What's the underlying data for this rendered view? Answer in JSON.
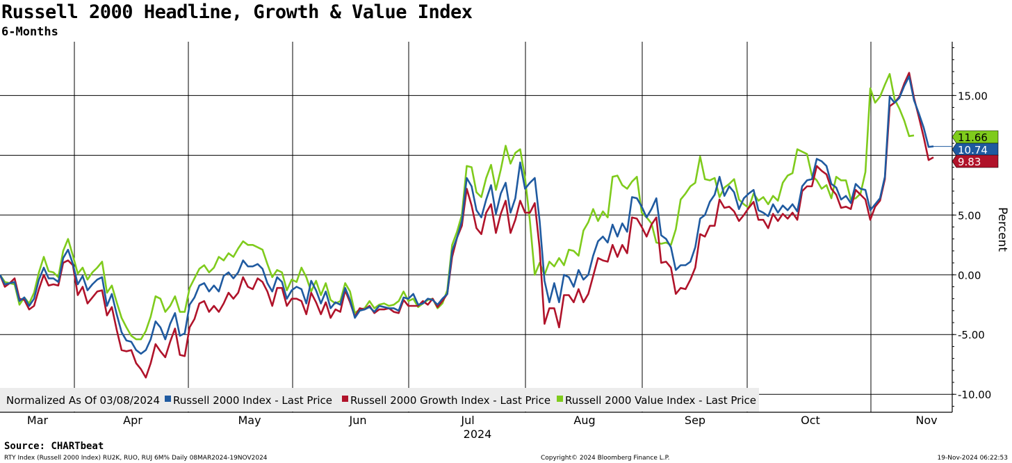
{
  "header": {
    "title": "Russell 2000 Headline, Growth & Value Index",
    "subtitle": "6-Months"
  },
  "footer": {
    "source": "Source: CHARTbeat",
    "tickers": "RTY Index (Russell 2000 Index) RU2K, RUO, RUJ 6M%  Daily 08MAR2024-19NOV2024",
    "copyright": "Copyright© 2024 Bloomberg Finance L.P.",
    "timestamp": "19-Nov-2024 06:22:53"
  },
  "chart_data": {
    "type": "line",
    "ylabel": "Percent",
    "xlabel": "",
    "ylim": [
      -11.5,
      19.5
    ],
    "yticks": [
      15,
      10,
      5,
      0,
      -5,
      -10
    ],
    "ytick_labels": [
      "15.00",
      "10.00",
      "5.00",
      "0.00",
      "-5.00",
      "-10.00"
    ],
    "month_labels": [
      "Mar",
      "Apr",
      "May",
      "Jun",
      "Jul",
      "Aug",
      "Sep",
      "Oct",
      "Nov"
    ],
    "year_label": "2024",
    "grid": true,
    "legend": {
      "placement": "bottom-left",
      "prefix": "Normalized As Of 03/08/2024",
      "items": [
        "Russell 2000 Index - Last Price",
        "Russell 2000 Growth Index - Last Price",
        "Russell 2000 Value Index - Last Price"
      ]
    },
    "last_value_labels": [
      "11.66",
      "10.74",
      "9.83"
    ],
    "colors": {
      "headline": "#1f5aa0",
      "growth": "#b0132a",
      "value": "#7fcb1c"
    },
    "series": [
      {
        "name": "Russell 2000 Index - Last Price",
        "key": "headline",
        "values": [
          0.0,
          -0.8,
          -0.7,
          -0.6,
          -2.2,
          -1.9,
          -2.6,
          -2.0,
          -0.4,
          0.6,
          -0.3,
          -0.3,
          -0.6,
          1.4,
          2.1,
          0.9,
          -0.8,
          -0.1,
          -1.3,
          -0.8,
          -0.4,
          -0.2,
          -2.6,
          -1.6,
          -3.3,
          -4.8,
          -5.5,
          -5.6,
          -6.3,
          -6.6,
          -6.3,
          -5.4,
          -3.9,
          -4.4,
          -5.4,
          -4.1,
          -3.2,
          -5.1,
          -4.9,
          -2.5,
          -1.9,
          -0.9,
          -0.7,
          -1.4,
          -0.9,
          -1.4,
          -0.1,
          0.2,
          -0.3,
          0.2,
          1.2,
          0.7,
          0.7,
          0.9,
          0.5,
          -0.7,
          -1.4,
          -0.2,
          -0.6,
          -2.0,
          -1.3,
          -1.0,
          -1.2,
          -2.4,
          -0.5,
          -1.3,
          -2.4,
          -1.4,
          -2.8,
          -2.3,
          -2.5,
          -1.1,
          -2.1,
          -3.6,
          -3.0,
          -2.9,
          -2.7,
          -3.1,
          -2.6,
          -2.7,
          -2.8,
          -2.8,
          -3.0,
          -1.9,
          -2.0,
          -1.6,
          -2.5,
          -2.4,
          -2.0,
          -2.1,
          -2.5,
          -2.0,
          -1.6,
          2.0,
          3.1,
          4.5,
          8.1,
          7.4,
          5.4,
          4.8,
          6.3,
          7.5,
          5.1,
          6.8,
          7.7,
          5.2,
          6.4,
          9.4,
          7.2,
          7.7,
          8.1,
          4.5,
          -0.5,
          -2.3,
          -0.7,
          -2.3,
          0.0,
          -0.2,
          -1.0,
          0.4,
          -0.4,
          0.0,
          1.6,
          2.8,
          3.2,
          2.7,
          4.2,
          3.2,
          4.3,
          3.6,
          6.5,
          6.4,
          5.7,
          4.8,
          5.5,
          6.4,
          3.3,
          3.0,
          2.3,
          0.4,
          0.8,
          0.8,
          1.1,
          2.3,
          4.7,
          5.0,
          6.1,
          6.7,
          8.2,
          6.6,
          7.4,
          6.9,
          5.5,
          6.4,
          6.8,
          7.1,
          5.4,
          5.2,
          4.9,
          5.9,
          5.2,
          5.8,
          5.4,
          5.9,
          5.3,
          7.4,
          7.9,
          8.0,
          9.7,
          9.5,
          9.1,
          7.6,
          7.3,
          6.3,
          6.6,
          6.0,
          7.6,
          7.2,
          7.1,
          5.4,
          5.9,
          6.4,
          8.2,
          14.9,
          14.4,
          14.8,
          15.8,
          16.6,
          14.6,
          13.5,
          12.3,
          10.7,
          10.74
        ]
      },
      {
        "name": "Russell 2000 Growth Index - Last Price",
        "key": "growth",
        "values": [
          0.0,
          -1.0,
          -0.7,
          -0.3,
          -2.0,
          -2.1,
          -2.9,
          -2.6,
          -1.2,
          0.0,
          -0.9,
          -0.8,
          -0.9,
          1.0,
          1.2,
          0.8,
          -1.7,
          -1.0,
          -2.4,
          -1.9,
          -1.4,
          -1.3,
          -3.4,
          -2.7,
          -4.6,
          -6.3,
          -6.4,
          -6.3,
          -7.4,
          -7.9,
          -8.6,
          -7.4,
          -5.8,
          -6.4,
          -6.9,
          -5.6,
          -4.5,
          -6.7,
          -6.8,
          -4.4,
          -3.7,
          -2.4,
          -2.2,
          -3.1,
          -2.6,
          -3.1,
          -2.4,
          -1.5,
          -2.0,
          -1.5,
          -0.2,
          -1.0,
          -1.2,
          -0.3,
          -0.6,
          -1.4,
          -2.6,
          -1.1,
          -1.1,
          -2.6,
          -2.0,
          -2.0,
          -2.2,
          -3.3,
          -1.5,
          -2.3,
          -3.3,
          -2.3,
          -3.6,
          -2.9,
          -3.1,
          -1.3,
          -2.3,
          -3.5,
          -2.8,
          -2.9,
          -2.6,
          -3.2,
          -2.9,
          -2.9,
          -2.8,
          -3.1,
          -3.2,
          -2.1,
          -2.6,
          -2.6,
          -2.6,
          -2.2,
          -2.5,
          -2.0,
          -2.7,
          -2.2,
          -1.6,
          1.5,
          3.1,
          4.1,
          7.2,
          5.8,
          3.9,
          3.4,
          5.2,
          5.9,
          3.5,
          5.1,
          6.2,
          3.5,
          4.6,
          6.2,
          5.2,
          5.2,
          6.0,
          2.2,
          -4.1,
          -2.8,
          -2.8,
          -4.4,
          -1.7,
          -1.7,
          -2.3,
          -1.2,
          -2.3,
          -1.6,
          -0.1,
          1.4,
          1.2,
          1.1,
          2.5,
          1.5,
          2.5,
          1.8,
          4.8,
          4.7,
          4.0,
          3.2,
          4.2,
          4.8,
          1.0,
          1.1,
          0.6,
          -1.6,
          -1.1,
          -1.2,
          -0.4,
          0.6,
          3.4,
          3.2,
          4.1,
          4.1,
          6.3,
          5.6,
          5.7,
          5.3,
          4.5,
          5.0,
          5.6,
          6.1,
          4.6,
          4.6,
          3.9,
          5.1,
          4.5,
          5.1,
          4.7,
          5.2,
          4.6,
          7.0,
          7.4,
          7.4,
          9.1,
          8.7,
          8.4,
          7.2,
          6.7,
          5.6,
          5.7,
          5.5,
          7.1,
          6.7,
          6.3,
          4.6,
          5.7,
          6.2,
          8.0,
          14.1,
          14.4,
          14.9,
          16.0,
          16.9,
          14.8,
          13.2,
          11.5,
          9.6,
          9.83
        ]
      },
      {
        "name": "Russell 2000 Value Index - Last Price",
        "key": "value",
        "values": [
          0.0,
          -0.6,
          -0.7,
          -0.8,
          -2.5,
          -1.9,
          -2.4,
          -1.5,
          0.2,
          1.5,
          0.3,
          0.2,
          -0.2,
          2.0,
          3.0,
          1.6,
          0.1,
          0.6,
          -0.4,
          0.2,
          0.6,
          1.1,
          -1.5,
          -0.9,
          -2.3,
          -3.6,
          -4.4,
          -5.1,
          -5.4,
          -5.4,
          -4.7,
          -3.5,
          -1.8,
          -2.0,
          -3.1,
          -2.6,
          -1.8,
          -3.1,
          -3.1,
          -1.1,
          -0.3,
          0.5,
          0.8,
          0.2,
          0.6,
          1.5,
          1.2,
          1.8,
          1.5,
          2.2,
          2.8,
          2.5,
          2.5,
          2.3,
          2.1,
          0.9,
          -0.2,
          0.4,
          0.2,
          -1.3,
          -0.4,
          -0.6,
          0.6,
          -0.2,
          -1.4,
          -0.5,
          -1.7,
          -0.7,
          -2.1,
          -2.4,
          -2.2,
          -0.7,
          -1.4,
          -3.2,
          -2.9,
          -2.8,
          -2.2,
          -2.8,
          -2.5,
          -2.4,
          -2.6,
          -2.5,
          -2.2,
          -1.4,
          -2.2,
          -2.0,
          -2.7,
          -2.4,
          -2.1,
          -2.0,
          -2.8,
          -2.4,
          -1.3,
          2.5,
          3.6,
          5.0,
          9.1,
          9.0,
          6.9,
          6.5,
          8.1,
          9.2,
          7.1,
          8.8,
          10.8,
          9.3,
          10.2,
          10.5,
          8.1,
          4.5,
          0.0,
          1.0,
          0.0,
          1.1,
          0.7,
          1.4,
          0.8,
          2.1,
          2.0,
          1.6,
          3.7,
          4.4,
          5.5,
          4.5,
          5.3,
          4.8,
          8.2,
          8.3,
          7.5,
          7.2,
          7.8,
          8.2,
          5.2,
          4.8,
          4.3,
          2.7,
          2.6,
          2.7,
          2.5,
          3.8,
          6.3,
          6.8,
          7.4,
          7.7,
          9.9,
          8.0,
          7.9,
          8.1,
          6.5,
          7.3,
          7.6,
          8.0,
          6.3,
          5.9,
          5.6,
          6.8,
          6.2,
          6.5,
          5.9,
          6.6,
          6.2,
          7.7,
          8.3,
          8.5,
          10.5,
          10.3,
          10.1,
          8.3,
          7.9,
          7.2,
          7.5,
          6.4,
          8.2,
          7.9,
          7.9,
          6.3,
          6.4,
          6.8,
          8.6,
          15.6,
          14.4,
          14.9,
          15.9,
          16.8,
          14.7,
          13.9,
          12.9,
          11.6,
          11.66
        ]
      }
    ]
  }
}
